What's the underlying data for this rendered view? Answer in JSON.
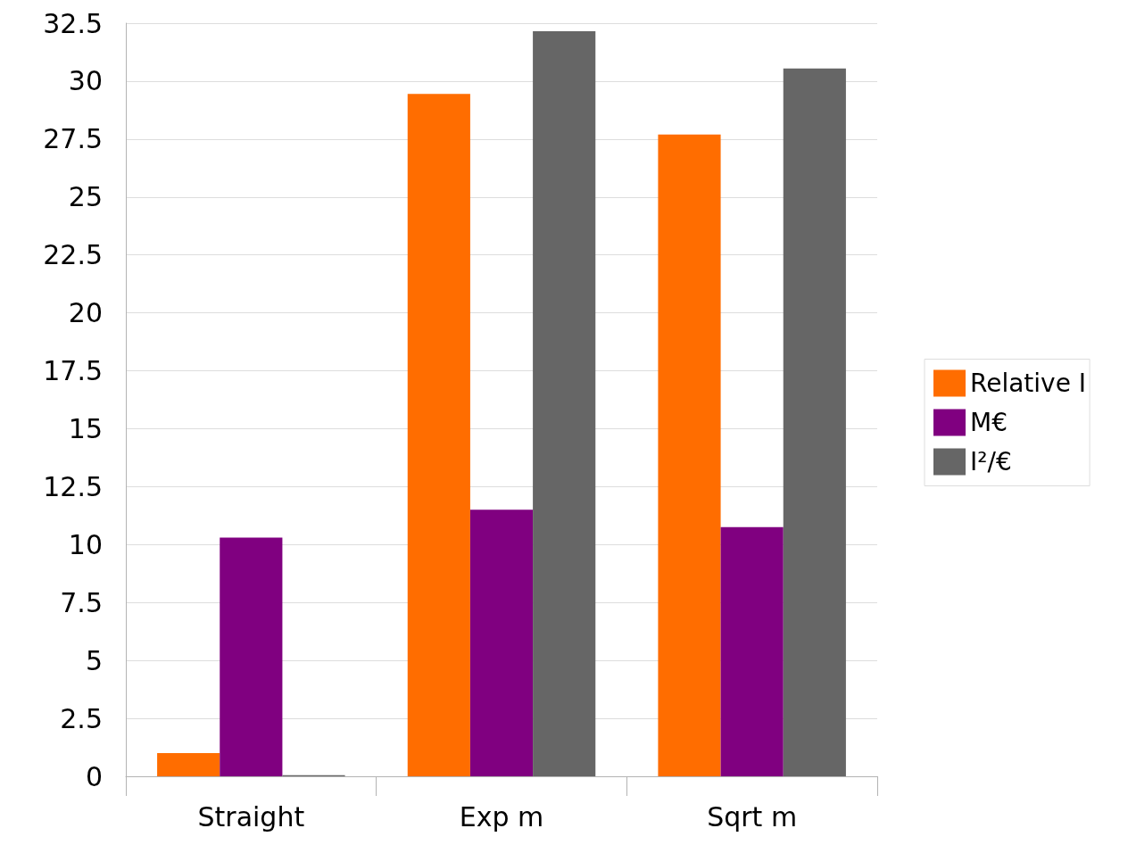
{
  "chart_data": {
    "type": "bar",
    "categories": [
      "Straight",
      "Exp m",
      "Sqrt m"
    ],
    "series": [
      {
        "name": "Relative I",
        "color": "#ff6d00",
        "values": [
          1.0,
          29.45,
          27.7
        ]
      },
      {
        "name": "M€",
        "color": "#800080",
        "values": [
          10.3,
          11.5,
          10.75
        ]
      },
      {
        "name": "I²/€",
        "color": "#666666",
        "values": [
          0.05,
          32.15,
          30.55
        ]
      }
    ],
    "ylim": [
      0,
      32.5
    ],
    "yticks": [
      0,
      2.5,
      5,
      7.5,
      10,
      12.5,
      15,
      17.5,
      20,
      22.5,
      25,
      27.5,
      30,
      32.5
    ],
    "grid": "y",
    "legend": "right"
  }
}
